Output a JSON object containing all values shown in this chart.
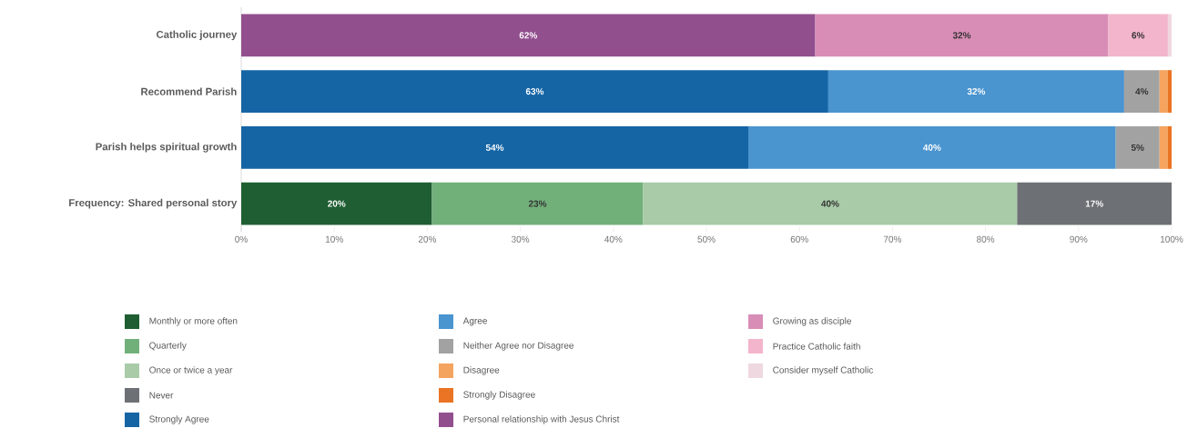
{
  "chart_data": {
    "type": "bar",
    "orientation": "horizontal",
    "stacked": true,
    "categories": [
      "Catholic journey",
      "Recommend Parish",
      "Parish helps spiritual growth",
      "Frequency: Shared personal story"
    ],
    "series": [
      {
        "name": "Monthly or more often",
        "color": "#1e5e32",
        "values": [
          null,
          null,
          null,
          20.5
        ],
        "value_labels": [
          null,
          null,
          null,
          "20%"
        ]
      },
      {
        "name": "Quarterly",
        "color": "#72b07a",
        "values": [
          null,
          null,
          null,
          22.7
        ],
        "value_labels": [
          null,
          null,
          null,
          "23%"
        ]
      },
      {
        "name": "Once or twice a year",
        "color": "#a9cba8",
        "values": [
          null,
          null,
          null,
          40.2
        ],
        "value_labels": [
          null,
          null,
          null,
          "40%"
        ]
      },
      {
        "name": "Never",
        "color": "#6d7074",
        "values": [
          null,
          null,
          null,
          16.6
        ],
        "value_labels": [
          null,
          null,
          null,
          "17%"
        ]
      },
      {
        "name": "Strongly Agree",
        "color": "#1565a5",
        "values": [
          null,
          63.1,
          54.5,
          null
        ],
        "value_labels": [
          null,
          "63%",
          "54%",
          null
        ]
      },
      {
        "name": "Agree",
        "color": "#4a94cf",
        "values": [
          null,
          31.8,
          39.5,
          null
        ],
        "value_labels": [
          null,
          "32%",
          "40%",
          null
        ]
      },
      {
        "name": "Neither Agree nor Disagree",
        "color": "#a2a2a2",
        "values": [
          null,
          3.8,
          4.7,
          null
        ],
        "value_labels": [
          null,
          "4%",
          "5%",
          null
        ]
      },
      {
        "name": "Disagree",
        "color": "#f5a460",
        "values": [
          null,
          0.9,
          0.9,
          null
        ],
        "value_labels": [
          null,
          null,
          null,
          null
        ]
      },
      {
        "name": "Strongly Disagree",
        "color": "#ea7424",
        "values": [
          null,
          0.4,
          0.4,
          null
        ],
        "value_labels": [
          null,
          null,
          null,
          null
        ]
      },
      {
        "name": "Personal relationship with Jesus Christ",
        "color": "#924f8e",
        "values": [
          61.7,
          null,
          null,
          null
        ],
        "value_labels": [
          "62%",
          null,
          null,
          null
        ]
      },
      {
        "name": "Growing as disciple",
        "color": "#d88db6",
        "values": [
          31.5,
          null,
          null,
          null
        ],
        "value_labels": [
          "32%",
          null,
          null,
          null
        ]
      },
      {
        "name": "Practice Catholic faith",
        "color": "#f3b5cc",
        "values": [
          6.4,
          null,
          null,
          null
        ],
        "value_labels": [
          "6%",
          null,
          null,
          null
        ]
      },
      {
        "name": "Consider myself Catholic",
        "color": "#efd8e0",
        "values": [
          0.4,
          null,
          null,
          null
        ],
        "value_labels": [
          null,
          null,
          null,
          null
        ]
      }
    ],
    "xlim": [
      0,
      100
    ],
    "xticks": [
      {
        "value": 0,
        "label": "0%"
      },
      {
        "value": 10,
        "label": "10%"
      },
      {
        "value": 20,
        "label": "20%"
      },
      {
        "value": 30,
        "label": "30%"
      },
      {
        "value": 40,
        "label": "40%"
      },
      {
        "value": 50,
        "label": "50%"
      },
      {
        "value": 60,
        "label": "60%"
      },
      {
        "value": 70,
        "label": "70%"
      },
      {
        "value": 80,
        "label": "80%"
      },
      {
        "value": 90,
        "label": "90%"
      },
      {
        "value": 100,
        "label": "100%"
      }
    ],
    "legend": "bottom"
  }
}
